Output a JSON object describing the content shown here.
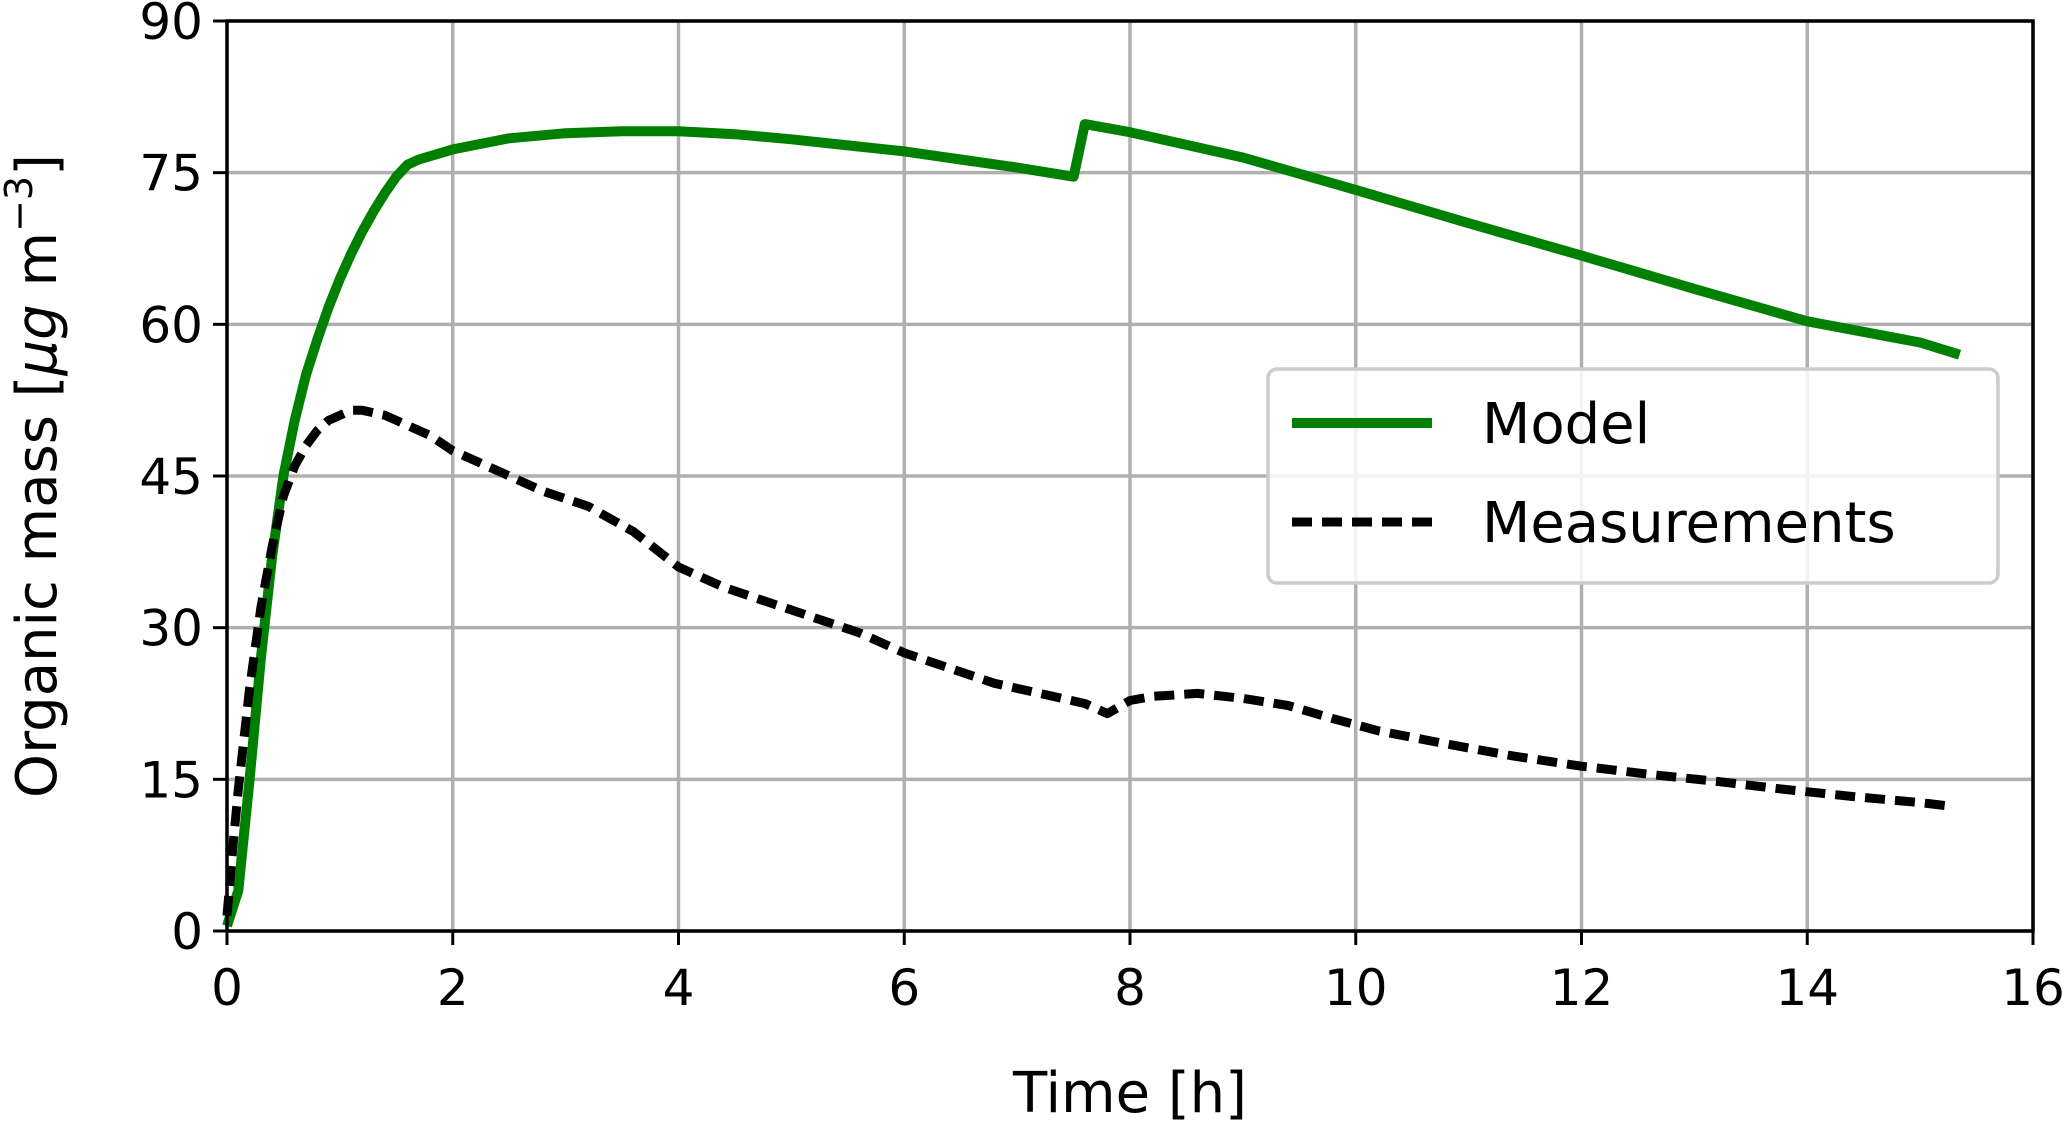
{
  "chart_data": {
    "type": "line",
    "title": "",
    "xlabel": "Time [h]",
    "ylabel": {
      "prefix": "Organic mass [",
      "mu": "μ",
      "g": "g",
      "unit": " m",
      "exponent": "−3",
      "suffix": "]"
    },
    "xlim": [
      0,
      16
    ],
    "ylim": [
      0,
      90
    ],
    "xticks": [
      0,
      2,
      4,
      6,
      8,
      10,
      12,
      14,
      16
    ],
    "yticks": [
      0,
      15,
      30,
      45,
      60,
      75,
      90
    ],
    "xtick_labels": [
      "0",
      "2",
      "4",
      "6",
      "8",
      "10",
      "12",
      "14",
      "16"
    ],
    "ytick_labels": [
      "0",
      "15",
      "30",
      "45",
      "60",
      "75",
      "90"
    ],
    "grid": true,
    "legend_position": "center-right",
    "series": [
      {
        "name": "Model",
        "color": "#008000",
        "style": "solid",
        "points": [
          [
            0.0,
            0.5
          ],
          [
            0.1,
            4.0
          ],
          [
            0.2,
            15.0
          ],
          [
            0.3,
            27.0
          ],
          [
            0.4,
            37.0
          ],
          [
            0.5,
            45.0
          ],
          [
            0.6,
            50.5
          ],
          [
            0.7,
            55.0
          ],
          [
            0.8,
            58.5
          ],
          [
            0.9,
            61.7
          ],
          [
            1.0,
            64.5
          ],
          [
            1.1,
            67.0
          ],
          [
            1.2,
            69.2
          ],
          [
            1.3,
            71.2
          ],
          [
            1.4,
            73.0
          ],
          [
            1.5,
            74.6
          ],
          [
            1.6,
            75.8
          ],
          [
            1.7,
            76.3
          ],
          [
            2.0,
            77.3
          ],
          [
            2.5,
            78.4
          ],
          [
            3.0,
            78.9
          ],
          [
            3.5,
            79.1
          ],
          [
            4.0,
            79.1
          ],
          [
            4.5,
            78.8
          ],
          [
            5.0,
            78.3
          ],
          [
            5.5,
            77.7
          ],
          [
            6.0,
            77.1
          ],
          [
            6.5,
            76.3
          ],
          [
            7.0,
            75.5
          ],
          [
            7.5,
            74.6
          ],
          [
            7.6,
            79.8
          ],
          [
            8.0,
            79.0
          ],
          [
            9.0,
            76.5
          ],
          [
            10.0,
            73.3
          ],
          [
            11.0,
            70.0
          ],
          [
            12.0,
            66.8
          ],
          [
            13.0,
            63.5
          ],
          [
            14.0,
            60.3
          ],
          [
            15.0,
            58.2
          ],
          [
            15.35,
            57.0
          ]
        ]
      },
      {
        "name": "Measurements",
        "color": "#000000",
        "style": "dashed",
        "points": [
          [
            0.0,
            1.5
          ],
          [
            0.05,
            8.0
          ],
          [
            0.1,
            14.0
          ],
          [
            0.2,
            24.0
          ],
          [
            0.3,
            32.0
          ],
          [
            0.4,
            38.0
          ],
          [
            0.5,
            43.0
          ],
          [
            0.6,
            46.0
          ],
          [
            0.7,
            48.0
          ],
          [
            0.8,
            49.5
          ],
          [
            0.9,
            50.5
          ],
          [
            1.0,
            51.0
          ],
          [
            1.1,
            51.5
          ],
          [
            1.2,
            51.5
          ],
          [
            1.4,
            51.0
          ],
          [
            1.6,
            50.0
          ],
          [
            1.8,
            49.0
          ],
          [
            2.0,
            47.5
          ],
          [
            2.4,
            45.5
          ],
          [
            2.8,
            43.5
          ],
          [
            3.2,
            42.0
          ],
          [
            3.6,
            39.5
          ],
          [
            4.0,
            36.0
          ],
          [
            4.4,
            34.0
          ],
          [
            4.8,
            32.5
          ],
          [
            5.2,
            31.0
          ],
          [
            5.6,
            29.5
          ],
          [
            6.0,
            27.5
          ],
          [
            6.4,
            26.0
          ],
          [
            6.8,
            24.5
          ],
          [
            7.2,
            23.5
          ],
          [
            7.6,
            22.5
          ],
          [
            7.8,
            21.5
          ],
          [
            8.0,
            22.8
          ],
          [
            8.2,
            23.2
          ],
          [
            8.6,
            23.5
          ],
          [
            9.0,
            23.0
          ],
          [
            9.4,
            22.3
          ],
          [
            9.8,
            21.0
          ],
          [
            10.2,
            19.8
          ],
          [
            10.8,
            18.5
          ],
          [
            11.4,
            17.3
          ],
          [
            12.0,
            16.3
          ],
          [
            12.6,
            15.5
          ],
          [
            13.2,
            14.8
          ],
          [
            13.8,
            14.0
          ],
          [
            14.4,
            13.3
          ],
          [
            15.0,
            12.7
          ],
          [
            15.3,
            12.3
          ]
        ]
      }
    ]
  }
}
